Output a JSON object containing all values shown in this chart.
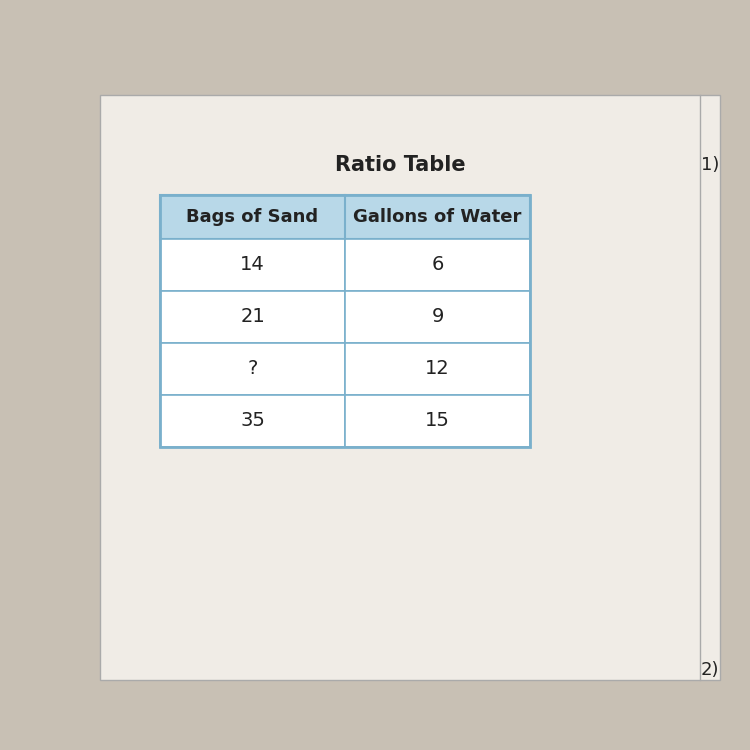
{
  "title": "Ratio Table",
  "title_fontsize": 15,
  "title_fontweight": "bold",
  "col_headers": [
    "Bags of Sand",
    "Gallons of Water"
  ],
  "rows": [
    [
      "14",
      "6"
    ],
    [
      "21",
      "9"
    ],
    [
      "?",
      "12"
    ],
    [
      "35",
      "15"
    ]
  ],
  "header_bg_color": "#b8d8e8",
  "header_text_color": "#222222",
  "cell_bg_color": "#ffffff",
  "border_color": "#7ab0cc",
  "label_number": "1)",
  "label_number2": "2)",
  "outer_bg_color": "#c8c0b4",
  "page_bg_color": "#e8e4de",
  "white_area_color": "#f0ece6",
  "data_fontsize": 14,
  "header_fontsize": 13,
  "label_fontsize": 13
}
